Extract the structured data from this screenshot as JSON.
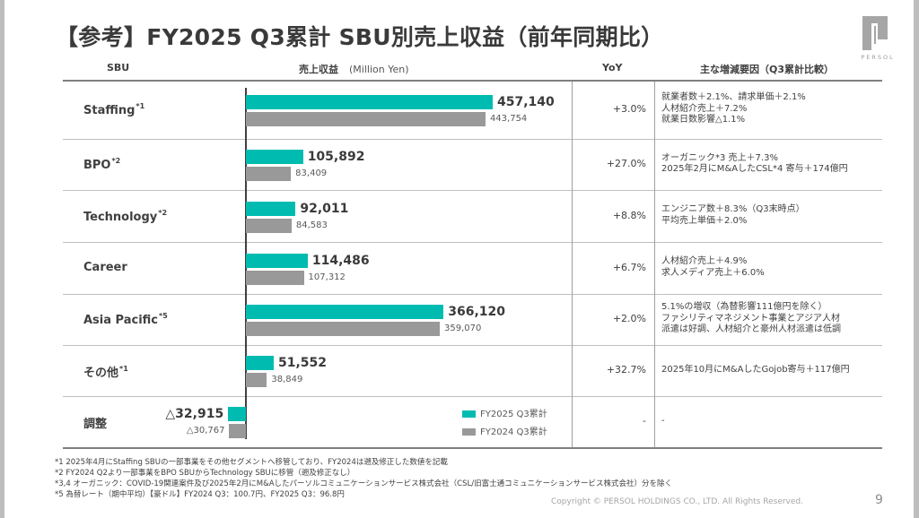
{
  "title": "【参考】FY2025 Q3累計  SBU別売上収益（前年同期比）",
  "logo": {
    "icon": "persol-logo-icon",
    "text": "PERSOL"
  },
  "headers": {
    "sbu": "SBU",
    "revenue": "売上収益",
    "revenue_unit": "(Million Yen)",
    "yoy": "YoY",
    "factors": "主な増減要因（Q3累計比較）"
  },
  "rows": [
    {
      "name": "Staffing",
      "note": "*1",
      "current_label": "457,140",
      "prev_label": "443,754",
      "yoy": "+3.0%",
      "factors": [
        "就業者数＋2.1%、請求単価＋2.1%",
        "人材紹介売上＋7.2%",
        "就業日数影響△1.1%"
      ]
    },
    {
      "name": "BPO",
      "note": "*2",
      "current_label": "105,892",
      "prev_label": "83,409",
      "yoy": "+27.0%",
      "factors": [
        "オーガニック*3 売上＋7.3%",
        "2025年2月にM&AしたCSL*4 寄与＋174億円"
      ]
    },
    {
      "name": "Technology",
      "note": "*2",
      "current_label": "92,011",
      "prev_label": "84,583",
      "yoy": "+8.8%",
      "factors": [
        "エンジニア数＋8.3%（Q3末時点）",
        "平均売上単価＋2.0%"
      ]
    },
    {
      "name": "Career",
      "note": "",
      "current_label": "114,486",
      "prev_label": "107,312",
      "yoy": "+6.7%",
      "factors": [
        "人材紹介売上＋4.9%",
        "求人メディア売上＋6.0%"
      ]
    },
    {
      "name": "Asia Pacific",
      "note": "*5",
      "current_label": "366,120",
      "prev_label": "359,070",
      "yoy": "+2.0%",
      "factors": [
        "5.1%の増収（為替影響111億円を除く）",
        "ファシリティマネジメント事業とアジア人材",
        "派遣は好調、人材紹介と豪州人材派遣は低調"
      ]
    },
    {
      "name": "その他",
      "note": "*1",
      "current_label": "51,552",
      "prev_label": "38,849",
      "yoy": "+32.7%",
      "factors": [
        "2025年10月にM&AしたGojob寄与＋117億円"
      ]
    },
    {
      "name": "調整",
      "note": "",
      "current_label": "△32,915",
      "prev_label": "△30,767",
      "yoy": "-",
      "factors": [
        "-"
      ]
    }
  ],
  "legend": {
    "current": "FY2025 Q3累計",
    "previous": "FY2024 Q3累計"
  },
  "footnotes": [
    "*1 2025年4月にStaffing SBUの一部事業をその他セグメントへ移管しており、FY2024は遡及修正した数値を記載",
    "*2 FY2024 Q2より一部事業をBPO SBUからTechnology SBUに移管（遡及修正なし）",
    "*3,4 オーガニック：COVID-19関連案件及び2025年2月にM&Aしたパーソルコミュニケーションサービス株式会社（CSL/旧富士通コミュニケーションサービス株式会社）分を除く",
    "*5 為替レート（期中平均）【豪ドル】FY2024 Q3：100.7円、FY2025 Q3：96.8円"
  ],
  "copyright": "Copyright © PERSOL HOLDINGS CO., LTD. All Rights Reserved.",
  "page_number": "9",
  "colors": {
    "current": "#00bcb0",
    "previous": "#999999"
  },
  "chart_data": {
    "type": "bar",
    "orientation": "horizontal",
    "title": "FY2025 Q3累計 SBU別売上収益（前年同期比）",
    "xlabel": "売上収益 (Million Yen)",
    "ylabel": "SBU",
    "categories": [
      "Staffing",
      "BPO",
      "Technology",
      "Career",
      "Asia Pacific",
      "その他",
      "調整"
    ],
    "series": [
      {
        "name": "FY2025 Q3累計",
        "values": [
          457140,
          105892,
          92011,
          114486,
          366120,
          51552,
          -32915
        ]
      },
      {
        "name": "FY2024 Q3累計",
        "values": [
          443754,
          83409,
          84583,
          107312,
          359070,
          38849,
          -30767
        ]
      }
    ],
    "yoy": [
      "+3.0%",
      "+27.0%",
      "+8.8%",
      "+6.7%",
      "+2.0%",
      "+32.7%",
      "-"
    ],
    "xlim": [
      -40000,
      460000
    ],
    "grid": false,
    "legend_position": "bottom-right"
  }
}
